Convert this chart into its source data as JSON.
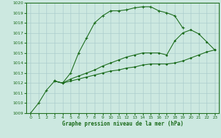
{
  "bg_color": "#cce8e0",
  "grid_color": "#aacccc",
  "line_color": "#1a6b1a",
  "line1_x": [
    0,
    1,
    2,
    3,
    4,
    5,
    6,
    7,
    8,
    9,
    10,
    11,
    12,
    13,
    14,
    15,
    16,
    17,
    18,
    19
  ],
  "line1_y": [
    1009.0,
    1010.0,
    1011.3,
    1012.2,
    1012.0,
    1013.0,
    1015.0,
    1016.5,
    1018.0,
    1018.7,
    1019.2,
    1019.2,
    1019.3,
    1019.5,
    1019.6,
    1019.6,
    1019.2,
    1019.0,
    1018.7,
    1017.5
  ],
  "line2_x": [
    3,
    4,
    5,
    6,
    7,
    8,
    9,
    10,
    11,
    12,
    13,
    14,
    15,
    16,
    17,
    18,
    19,
    20,
    21,
    22,
    23
  ],
  "line2_y": [
    1012.2,
    1012.0,
    1012.4,
    1012.7,
    1013.0,
    1013.3,
    1013.7,
    1014.0,
    1014.3,
    1014.6,
    1014.8,
    1015.0,
    1015.0,
    1015.0,
    1014.8,
    1016.2,
    1017.0,
    1017.3,
    1016.9,
    1016.1,
    1015.3
  ],
  "line3_x": [
    3,
    4,
    5,
    6,
    7,
    8,
    9,
    10,
    11,
    12,
    13,
    14,
    15,
    16,
    17,
    18,
    19,
    20,
    21,
    22,
    23
  ],
  "line3_y": [
    1012.2,
    1012.0,
    1012.2,
    1012.4,
    1012.6,
    1012.8,
    1013.0,
    1013.2,
    1013.3,
    1013.5,
    1013.6,
    1013.8,
    1013.9,
    1013.9,
    1013.9,
    1014.0,
    1014.2,
    1014.5,
    1014.8,
    1015.1,
    1015.3
  ],
  "xlim": [
    -0.5,
    23.5
  ],
  "ylim": [
    1009,
    1020
  ],
  "yticks": [
    1009,
    1010,
    1011,
    1012,
    1013,
    1014,
    1015,
    1016,
    1017,
    1018,
    1019,
    1020
  ],
  "xticks": [
    0,
    1,
    2,
    3,
    4,
    5,
    6,
    7,
    8,
    9,
    10,
    11,
    12,
    13,
    14,
    15,
    16,
    17,
    18,
    19,
    20,
    21,
    22,
    23
  ],
  "xlabel": "Graphe pression niveau de la mer (hPa)",
  "xlabel_color": "#1a6b1a",
  "tick_label_size": 4.5,
  "xlabel_fontsize": 5.5
}
